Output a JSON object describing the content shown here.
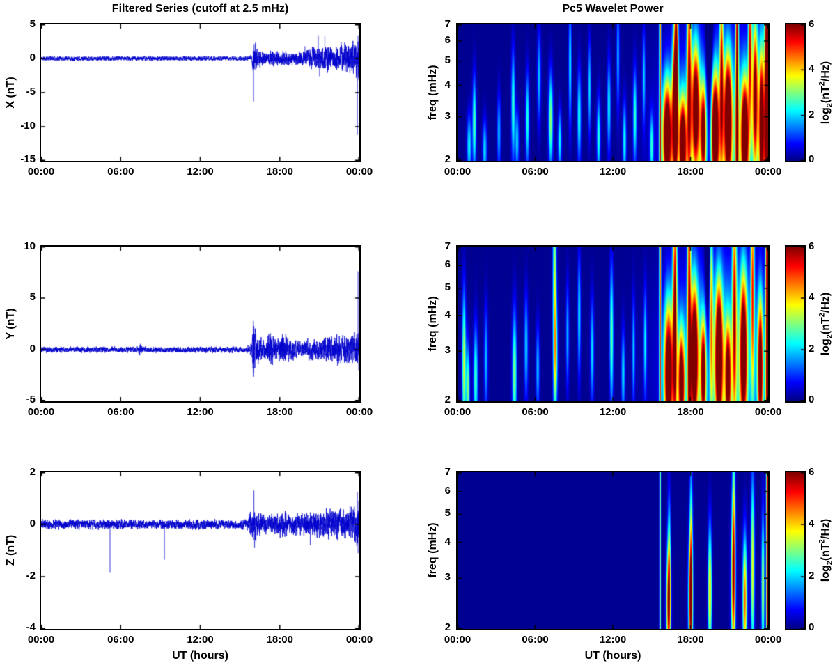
{
  "figure": {
    "background": "#ffffff",
    "left_title": "Filtered Series (cutoff at 2.5 mHz)",
    "right_title": "Pc5 Wavelet Power",
    "xlabel": "UT (hours)",
    "x_ticks": [
      "00:00",
      "06:00",
      "12:00",
      "18:00",
      "00:00"
    ],
    "line_color": "#0000cd",
    "colorbar": {
      "min": 0,
      "max": 6,
      "ticks": [
        0,
        2,
        4,
        6
      ],
      "label_pre": "log",
      "label_sub": "2",
      "label_mid": "(nT",
      "label_sup": "2",
      "label_post": "/Hz)",
      "colormap": "jet"
    }
  },
  "chart_data": [
    {
      "type": "line",
      "panel": "X filtered series",
      "ylabel": "X (nT)",
      "ylim": [
        -15,
        5
      ],
      "yticks": [
        5,
        0,
        -5,
        -10,
        -15
      ],
      "x_hours_range": [
        0,
        24
      ],
      "xticks_hours": [
        0,
        6,
        12,
        18,
        24
      ],
      "seed": 11,
      "envelope": [
        [
          0,
          0.18
        ],
        [
          15.5,
          0.18
        ],
        [
          15.9,
          0.25
        ],
        [
          16.0,
          1.5
        ],
        [
          16.3,
          0.8
        ],
        [
          17,
          0.5
        ],
        [
          17.5,
          0.7
        ],
        [
          18,
          0.5
        ],
        [
          18.5,
          0.6
        ],
        [
          19,
          0.5
        ],
        [
          19.5,
          0.6
        ],
        [
          20,
          0.6
        ],
        [
          20.5,
          0.9
        ],
        [
          21,
          0.8
        ],
        [
          21.5,
          1.1
        ],
        [
          22,
          0.9
        ],
        [
          22.5,
          1.0
        ],
        [
          23,
          1.2
        ],
        [
          23.5,
          1.3
        ],
        [
          24,
          1.6
        ]
      ],
      "spikes": [
        [
          16.02,
          -6.3
        ],
        [
          16.06,
          2.1
        ],
        [
          19.9,
          1.8
        ],
        [
          20.9,
          3.4
        ],
        [
          21.0,
          -2.6
        ],
        [
          21.4,
          3.3
        ],
        [
          23.85,
          -11.2
        ],
        [
          23.9,
          3.4
        ],
        [
          23.95,
          -3.2
        ]
      ]
    },
    {
      "type": "heatmap",
      "panel": "X wavelet power",
      "ylabel": "freq (mHz)",
      "f_range_mhz": [
        2,
        7
      ],
      "yticks": [
        7,
        6,
        5,
        4,
        3,
        2
      ],
      "x_hours_range": [
        0,
        24
      ],
      "xticks_hours": [
        0,
        6,
        12,
        18,
        24
      ],
      "value_range": [
        0,
        6
      ],
      "background_level": 0.1,
      "blob_format": "[t_hours, freq_mhz, sigma_t_hours, sigma_lnf, peak_log2_power]",
      "blobs": [
        [
          0.9,
          2.3,
          0.12,
          0.2,
          2.2
        ],
        [
          1.3,
          2.8,
          0.1,
          0.3,
          2.8
        ],
        [
          2.1,
          2.2,
          0.12,
          0.2,
          2.0
        ],
        [
          3.2,
          2.6,
          0.1,
          0.25,
          1.8
        ],
        [
          4.3,
          3.3,
          0.1,
          0.35,
          2.6
        ],
        [
          4.6,
          2.4,
          0.1,
          0.2,
          2.0
        ],
        [
          5.4,
          2.9,
          0.1,
          0.3,
          2.4
        ],
        [
          6.3,
          4.3,
          0.1,
          0.3,
          1.8
        ],
        [
          7.2,
          2.9,
          0.12,
          0.3,
          3.0
        ],
        [
          7.9,
          2.4,
          0.1,
          0.2,
          2.2
        ],
        [
          8.7,
          4.8,
          0.08,
          0.4,
          2.2
        ],
        [
          9.4,
          3.0,
          0.1,
          0.3,
          2.4
        ],
        [
          10.2,
          3.9,
          0.08,
          0.3,
          2.0
        ],
        [
          10.9,
          2.5,
          0.1,
          0.25,
          2.4
        ],
        [
          11.7,
          3.3,
          0.1,
          0.3,
          2.2
        ],
        [
          12.4,
          5.2,
          0.08,
          0.35,
          1.8
        ],
        [
          12.9,
          2.4,
          0.1,
          0.25,
          2.2
        ],
        [
          13.7,
          3.0,
          0.1,
          0.3,
          2.4
        ],
        [
          14.4,
          4.3,
          0.08,
          0.3,
          1.8
        ],
        [
          15.0,
          2.3,
          0.1,
          0.2,
          2.2
        ],
        [
          15.65,
          3.5,
          0.05,
          3,
          5.2
        ],
        [
          16.2,
          2.5,
          0.25,
          0.35,
          7.5
        ],
        [
          16.8,
          3.2,
          0.15,
          0.5,
          6.5
        ],
        [
          16.9,
          5.5,
          0.1,
          0.6,
          4.5
        ],
        [
          17.4,
          2.3,
          0.2,
          0.3,
          7.0
        ],
        [
          17.9,
          4.5,
          0.12,
          0.8,
          5.0
        ],
        [
          18.4,
          3.3,
          0.2,
          0.4,
          6.0
        ],
        [
          19.0,
          2.6,
          0.15,
          0.3,
          5.0
        ],
        [
          19.9,
          2.6,
          0.2,
          0.35,
          6.5
        ],
        [
          20.4,
          4.8,
          0.1,
          0.6,
          4.5
        ],
        [
          20.9,
          3.0,
          0.2,
          0.4,
          6.5
        ],
        [
          21.6,
          3.5,
          0.08,
          3,
          5.5
        ],
        [
          22.2,
          2.5,
          0.2,
          0.35,
          7.0
        ],
        [
          22.6,
          6.0,
          0.1,
          0.5,
          4.8
        ],
        [
          23.0,
          3.8,
          0.15,
          0.5,
          5.5
        ],
        [
          23.5,
          2.8,
          0.15,
          0.5,
          6.5
        ],
        [
          23.9,
          3.0,
          0.12,
          3,
          7.0
        ],
        [
          20.3,
          2.5,
          2.6,
          0.6,
          2.5
        ],
        [
          19.45,
          5.0,
          0.18,
          1.2,
          -2.5
        ]
      ]
    },
    {
      "type": "line",
      "panel": "Y filtered series",
      "ylabel": "Y (nT)",
      "ylim": [
        -5,
        10
      ],
      "yticks": [
        10,
        5,
        0,
        -5
      ],
      "x_hours_range": [
        0,
        24
      ],
      "xticks_hours": [
        0,
        6,
        12,
        18,
        24
      ],
      "seed": 23,
      "envelope": [
        [
          0,
          0.15
        ],
        [
          7.3,
          0.15
        ],
        [
          7.5,
          0.35
        ],
        [
          7.7,
          0.15
        ],
        [
          15.5,
          0.15
        ],
        [
          15.9,
          0.3
        ],
        [
          16.0,
          1.6
        ],
        [
          16.3,
          0.8
        ],
        [
          16.8,
          0.5
        ],
        [
          17.3,
          0.9
        ],
        [
          17.8,
          0.5
        ],
        [
          18.3,
          0.8
        ],
        [
          19,
          0.5
        ],
        [
          19.5,
          0.4
        ],
        [
          20,
          0.5
        ],
        [
          20.5,
          0.6
        ],
        [
          21,
          0.5
        ],
        [
          21.5,
          0.7
        ],
        [
          22,
          0.6
        ],
        [
          22.5,
          0.8
        ],
        [
          23,
          0.7
        ],
        [
          23.5,
          0.8
        ],
        [
          24,
          1.0
        ]
      ],
      "spikes": [
        [
          16.02,
          -2.2
        ],
        [
          16.05,
          2.3
        ],
        [
          17.3,
          1.6
        ],
        [
          18.2,
          1.5
        ],
        [
          23.9,
          7.6
        ],
        [
          23.95,
          -2.0
        ]
      ]
    },
    {
      "type": "heatmap",
      "panel": "Y wavelet power",
      "ylabel": "freq (mHz)",
      "f_range_mhz": [
        2,
        7
      ],
      "yticks": [
        7,
        6,
        5,
        4,
        3,
        2
      ],
      "x_hours_range": [
        0,
        24
      ],
      "xticks_hours": [
        0,
        6,
        12,
        18,
        24
      ],
      "value_range": [
        0,
        6
      ],
      "background_level": 0.1,
      "blob_format": "[t_hours, freq_mhz, sigma_t_hours, sigma_lnf, peak_log2_power]",
      "blobs": [
        [
          0.5,
          2.7,
          0.1,
          0.4,
          3.4
        ],
        [
          0.8,
          2.2,
          0.1,
          0.25,
          3.0
        ],
        [
          1.4,
          2.4,
          0.12,
          0.3,
          2.6
        ],
        [
          2.2,
          2.8,
          0.1,
          0.3,
          1.8
        ],
        [
          4.4,
          2.5,
          0.12,
          0.35,
          3.0
        ],
        [
          5.3,
          3.1,
          0.1,
          0.3,
          2.0
        ],
        [
          6.2,
          2.6,
          0.1,
          0.25,
          1.8
        ],
        [
          7.5,
          4.8,
          0.1,
          0.7,
          3.4
        ],
        [
          7.6,
          2.9,
          0.1,
          0.3,
          2.4
        ],
        [
          8.5,
          3.4,
          0.08,
          0.3,
          1.8
        ],
        [
          9.4,
          4.0,
          0.08,
          0.35,
          2.2
        ],
        [
          10.4,
          3.0,
          0.1,
          0.3,
          2.0
        ],
        [
          11.9,
          3.4,
          0.1,
          0.4,
          2.8
        ],
        [
          12.8,
          2.5,
          0.1,
          0.25,
          2.0
        ],
        [
          13.6,
          3.0,
          0.08,
          0.3,
          1.8
        ],
        [
          14.5,
          3.2,
          0.08,
          0.3,
          2.0
        ],
        [
          15.65,
          3.5,
          0.05,
          3,
          5.2
        ],
        [
          16.3,
          2.5,
          0.25,
          0.4,
          7.0
        ],
        [
          16.8,
          4.2,
          0.12,
          0.8,
          5.5
        ],
        [
          17.3,
          2.3,
          0.18,
          0.3,
          6.5
        ],
        [
          17.9,
          4.0,
          0.1,
          3,
          4.8
        ],
        [
          18.3,
          2.9,
          0.2,
          0.4,
          7.0
        ],
        [
          19.0,
          2.5,
          0.15,
          0.3,
          5.5
        ],
        [
          19.6,
          4.5,
          0.1,
          0.6,
          4.0
        ],
        [
          20.2,
          2.9,
          0.2,
          0.4,
          7.0
        ],
        [
          20.9,
          2.4,
          0.15,
          0.3,
          5.5
        ],
        [
          21.4,
          4.6,
          0.12,
          0.7,
          4.5
        ],
        [
          22.1,
          3.0,
          0.2,
          0.45,
          6.5
        ],
        [
          22.8,
          5.2,
          0.1,
          0.6,
          4.5
        ],
        [
          23.4,
          2.6,
          0.15,
          0.4,
          6.5
        ],
        [
          23.95,
          3.0,
          0.1,
          3,
          7.0
        ],
        [
          20.3,
          2.6,
          2.6,
          0.6,
          2.2
        ],
        [
          19.4,
          6.0,
          0.2,
          0.8,
          -2.0
        ]
      ]
    },
    {
      "type": "line",
      "panel": "Z filtered series",
      "ylabel": "Z (nT)",
      "ylim": [
        -4,
        2
      ],
      "yticks": [
        2,
        0,
        -2,
        -4
      ],
      "x_hours_range": [
        0,
        24
      ],
      "xticks_hours": [
        0,
        6,
        12,
        18,
        24
      ],
      "seed": 37,
      "envelope": [
        [
          0,
          0.1
        ],
        [
          15.5,
          0.1
        ],
        [
          16.0,
          0.35
        ],
        [
          16.4,
          0.25
        ],
        [
          17,
          0.2
        ],
        [
          18,
          0.25
        ],
        [
          19,
          0.2
        ],
        [
          20,
          0.25
        ],
        [
          21,
          0.25
        ],
        [
          22,
          0.3
        ],
        [
          23,
          0.32
        ],
        [
          24,
          0.5
        ]
      ],
      "spikes": [
        [
          5.2,
          -1.85
        ],
        [
          9.3,
          -1.35
        ],
        [
          16.05,
          1.3
        ],
        [
          16.1,
          -0.9
        ],
        [
          20.3,
          -0.8
        ],
        [
          23.85,
          1.25
        ],
        [
          23.9,
          -1.1
        ],
        [
          23.95,
          0.9
        ]
      ]
    },
    {
      "type": "heatmap",
      "panel": "Z wavelet power",
      "ylabel": "freq (mHz)",
      "f_range_mhz": [
        2,
        7
      ],
      "yticks": [
        7,
        6,
        5,
        4,
        3,
        2
      ],
      "x_hours_range": [
        0,
        24
      ],
      "xticks_hours": [
        0,
        6,
        12,
        18,
        24
      ],
      "value_range": [
        0,
        6
      ],
      "background_level": 0.1,
      "blob_format": "[t_hours, freq_mhz, sigma_t_hours, sigma_lnf, peak_log2_power]",
      "blobs": [
        [
          15.65,
          3.5,
          0.04,
          3,
          3.8
        ],
        [
          16.3,
          2.4,
          0.12,
          0.3,
          4.8
        ],
        [
          16.35,
          3.2,
          0.08,
          0.4,
          3.0
        ],
        [
          18.0,
          2.5,
          0.12,
          0.35,
          4.8
        ],
        [
          18.05,
          3.5,
          0.08,
          0.5,
          3.2
        ],
        [
          19.5,
          2.7,
          0.1,
          0.35,
          4.2
        ],
        [
          21.3,
          2.9,
          0.12,
          0.45,
          4.4
        ],
        [
          21.35,
          4.5,
          0.08,
          0.6,
          2.5
        ],
        [
          22.2,
          2.5,
          0.12,
          0.35,
          4.6
        ],
        [
          22.8,
          3.3,
          0.1,
          0.5,
          3.6
        ],
        [
          23.6,
          2.8,
          0.08,
          0.4,
          3.5
        ],
        [
          23.95,
          2.6,
          0.07,
          3,
          6.2
        ]
      ]
    }
  ]
}
